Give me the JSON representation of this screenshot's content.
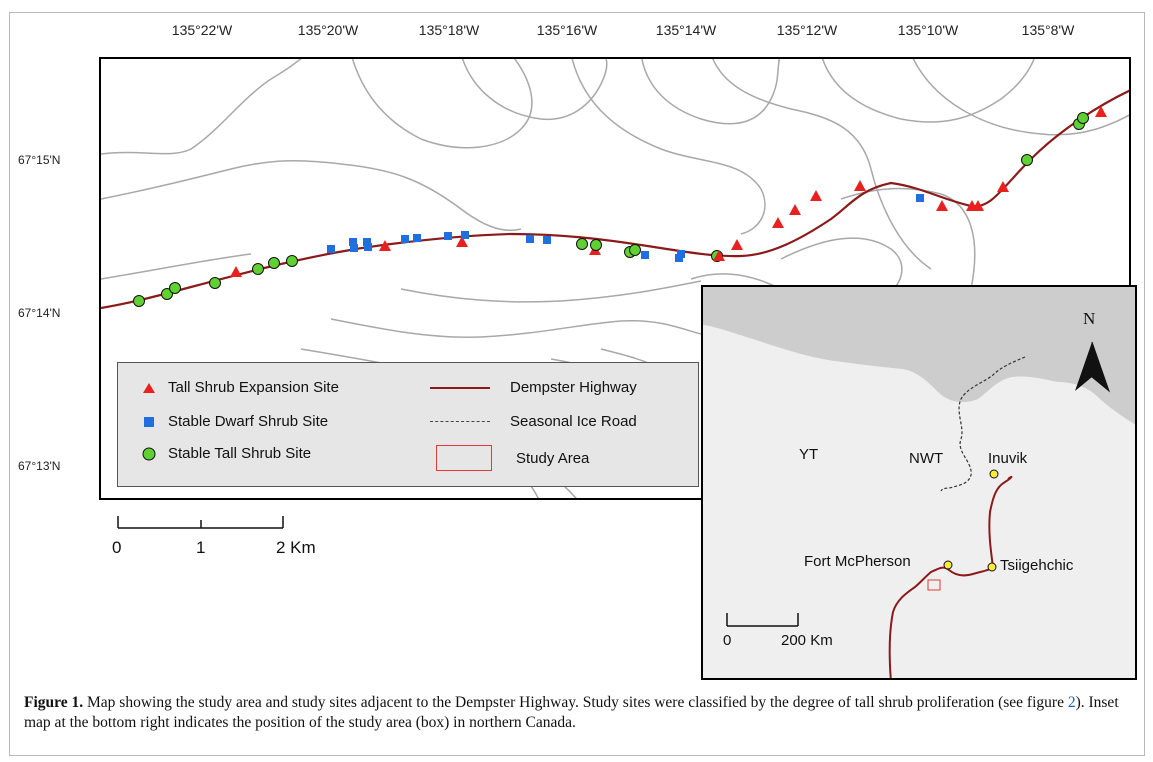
{
  "top_axis": [
    "135°22'W",
    "135°20'W",
    "135°18'W",
    "135°16'W",
    "135°14'W",
    "135°12'W",
    "135°10'W",
    "135°8'W"
  ],
  "left_axis": [
    "67°15'N",
    "67°14'N",
    "67°13'N"
  ],
  "legend": {
    "tall_expansion": "Tall Shrub Expansion Site",
    "stable_dwarf": "Stable Dwarf Shrub Site",
    "stable_tall": "Stable Tall Shrub Site",
    "highway": "Dempster Highway",
    "ice_road": "Seasonal Ice Road",
    "study_area": "Study Area"
  },
  "scale": {
    "t0": "0",
    "t1": "1",
    "t2": "2 Km"
  },
  "inset": {
    "north": "N",
    "yt": "YT",
    "nwt": "NWT",
    "inuvik": "Inuvik",
    "fort_mcpherson": "Fort McPherson",
    "tsiigehtchic": "Tsiigehchic",
    "scale0": "0",
    "scale1": "200 Km"
  },
  "caption": {
    "label": "Figure 1.",
    "text_a": " Map showing the study area and study sites adjacent to the Dempster Highway. Study sites were classified by the degree of tall shrub proliferation (see figure ",
    "ref": "2",
    "text_b": "). Inset map at the bottom right indicates the position of the study area (box) in northern Canada."
  },
  "colors": {
    "highway": "#8b1a1a",
    "tall_expansion": "#e8201f",
    "stable_dwarf": "#1f6fe0",
    "stable_tall": "#5fd132",
    "contour": "#a8a8a8",
    "study_box": "#e53935"
  }
}
